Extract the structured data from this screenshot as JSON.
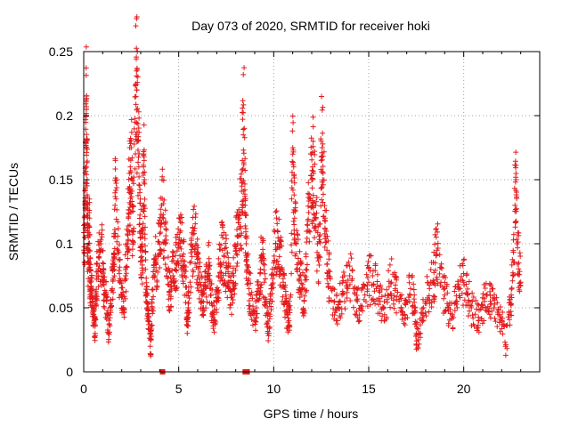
{
  "chart_data": {
    "type": "scatter",
    "title": "Day 073 of 2020, SRMTID for receiver hoki",
    "xlabel": "GPS time / hours",
    "ylabel": "SRMTID / TECUs",
    "xlim": [
      0,
      24
    ],
    "ylim": [
      0,
      0.25
    ],
    "grid": true,
    "marker": "plus",
    "colors": {
      "series": "#e41a1c",
      "axis": "#000000",
      "grid": "#a0a0a0"
    },
    "x_ticks": [
      {
        "value": 0,
        "label": "0"
      },
      {
        "value": 5,
        "label": "5"
      },
      {
        "value": 10,
        "label": "10"
      },
      {
        "value": 15,
        "label": "15"
      },
      {
        "value": 20,
        "label": "20"
      }
    ],
    "y_ticks": [
      {
        "value": 0,
        "label": "0"
      },
      {
        "value": 0.05,
        "label": "0.05"
      },
      {
        "value": 0.1,
        "label": "0.1"
      },
      {
        "value": 0.15,
        "label": "0.15"
      },
      {
        "value": 0.2,
        "label": "0.2"
      },
      {
        "value": 0.25,
        "label": "0.25"
      }
    ],
    "series": [
      {
        "name": "SRMTID",
        "points": [
          [
            0.0,
            0.095
          ],
          [
            0.05,
            0.105
          ],
          [
            0.08,
            0.13
          ],
          [
            0.1,
            0.16
          ],
          [
            0.12,
            0.2
          ],
          [
            0.14,
            0.205
          ],
          [
            0.15,
            0.175
          ],
          [
            0.18,
            0.15
          ],
          [
            0.2,
            0.11
          ],
          [
            0.22,
            0.095
          ],
          [
            0.25,
            0.085
          ],
          [
            0.3,
            0.12
          ],
          [
            0.32,
            0.08
          ],
          [
            0.35,
            0.07
          ],
          [
            0.4,
            0.065
          ],
          [
            0.45,
            0.055
          ],
          [
            0.5,
            0.045
          ],
          [
            0.55,
            0.04
          ],
          [
            0.6,
            0.03
          ],
          [
            0.65,
            0.06
          ],
          [
            0.7,
            0.075
          ],
          [
            0.8,
            0.09
          ],
          [
            0.9,
            0.1
          ],
          [
            1.0,
            0.085
          ],
          [
            1.05,
            0.07
          ],
          [
            1.1,
            0.06
          ],
          [
            1.2,
            0.055
          ],
          [
            1.3,
            0.03
          ],
          [
            1.4,
            0.05
          ],
          [
            1.5,
            0.065
          ],
          [
            1.55,
            0.08
          ],
          [
            1.6,
            0.09
          ],
          [
            1.65,
            0.13
          ],
          [
            1.7,
            0.135
          ],
          [
            1.8,
            0.095
          ],
          [
            1.9,
            0.07
          ],
          [
            2.0,
            0.06
          ],
          [
            2.1,
            0.05
          ],
          [
            2.2,
            0.075
          ],
          [
            2.3,
            0.1
          ],
          [
            2.35,
            0.12
          ],
          [
            2.4,
            0.14
          ],
          [
            2.45,
            0.16
          ],
          [
            2.5,
            0.175
          ],
          [
            2.55,
            0.13
          ],
          [
            2.6,
            0.11
          ],
          [
            2.7,
            0.195
          ],
          [
            2.75,
            0.215
          ],
          [
            2.8,
            0.22
          ],
          [
            2.85,
            0.18
          ],
          [
            2.9,
            0.16
          ],
          [
            2.95,
            0.14
          ],
          [
            3.0,
            0.105
          ],
          [
            3.05,
            0.09
          ],
          [
            3.1,
            0.095
          ],
          [
            3.15,
            0.16
          ],
          [
            3.2,
            0.15
          ],
          [
            3.25,
            0.08
          ],
          [
            3.3,
            0.06
          ],
          [
            3.35,
            0.05
          ],
          [
            3.4,
            0.04
          ],
          [
            3.5,
            0.02
          ],
          [
            3.55,
            0.025
          ],
          [
            3.6,
            0.05
          ],
          [
            3.7,
            0.075
          ],
          [
            3.8,
            0.085
          ],
          [
            3.9,
            0.09
          ],
          [
            4.0,
            0.095
          ],
          [
            4.1,
            0.13
          ],
          [
            4.2,
            0.12
          ],
          [
            4.3,
            0.1
          ],
          [
            4.4,
            0.08
          ],
          [
            4.5,
            0.06
          ],
          [
            4.6,
            0.07
          ],
          [
            4.7,
            0.075
          ],
          [
            4.8,
            0.08
          ],
          [
            4.9,
            0.085
          ],
          [
            5.0,
            0.1
          ],
          [
            5.1,
            0.11
          ],
          [
            5.2,
            0.09
          ],
          [
            5.3,
            0.08
          ],
          [
            5.4,
            0.06
          ],
          [
            5.45,
            0.03
          ],
          [
            5.5,
            0.05
          ],
          [
            5.6,
            0.07
          ],
          [
            5.7,
            0.09
          ],
          [
            5.8,
            0.11
          ],
          [
            5.9,
            0.1
          ],
          [
            6.0,
            0.085
          ],
          [
            6.1,
            0.07
          ],
          [
            6.2,
            0.06
          ],
          [
            6.3,
            0.05
          ],
          [
            6.4,
            0.065
          ],
          [
            6.5,
            0.075
          ],
          [
            6.6,
            0.08
          ],
          [
            6.7,
            0.06
          ],
          [
            6.8,
            0.045
          ],
          [
            6.9,
            0.04
          ],
          [
            7.0,
            0.055
          ],
          [
            7.1,
            0.075
          ],
          [
            7.2,
            0.085
          ],
          [
            7.3,
            0.095
          ],
          [
            7.4,
            0.09
          ],
          [
            7.5,
            0.085
          ],
          [
            7.6,
            0.07
          ],
          [
            7.7,
            0.065
          ],
          [
            7.8,
            0.06
          ],
          [
            7.9,
            0.075
          ],
          [
            8.0,
            0.095
          ],
          [
            8.1,
            0.1
          ],
          [
            8.2,
            0.12
          ],
          [
            8.3,
            0.125
          ],
          [
            8.35,
            0.165
          ],
          [
            8.4,
            0.185
          ],
          [
            8.45,
            0.19
          ],
          [
            8.5,
            0.13
          ],
          [
            8.55,
            0.1
          ],
          [
            8.6,
            0.08
          ],
          [
            8.7,
            0.065
          ],
          [
            8.8,
            0.06
          ],
          [
            9.0,
            0.04
          ],
          [
            9.1,
            0.05
          ],
          [
            9.2,
            0.065
          ],
          [
            9.3,
            0.08
          ],
          [
            9.4,
            0.09
          ],
          [
            9.5,
            0.07
          ],
          [
            9.6,
            0.055
          ],
          [
            9.7,
            0.035
          ],
          [
            9.8,
            0.045
          ],
          [
            9.9,
            0.065
          ],
          [
            10.0,
            0.085
          ],
          [
            10.1,
            0.1
          ],
          [
            10.2,
            0.11
          ],
          [
            10.3,
            0.09
          ],
          [
            10.4,
            0.08
          ],
          [
            10.5,
            0.07
          ],
          [
            10.6,
            0.055
          ],
          [
            10.7,
            0.045
          ],
          [
            10.8,
            0.04
          ],
          [
            10.9,
            0.06
          ],
          [
            11.0,
            0.17
          ],
          [
            11.05,
            0.16
          ],
          [
            11.1,
            0.12
          ],
          [
            11.2,
            0.1
          ],
          [
            11.3,
            0.085
          ],
          [
            11.4,
            0.075
          ],
          [
            11.5,
            0.065
          ],
          [
            11.6,
            0.055
          ],
          [
            11.7,
            0.08
          ],
          [
            11.8,
            0.11
          ],
          [
            11.9,
            0.135
          ],
          [
            12.0,
            0.15
          ],
          [
            12.05,
            0.16
          ],
          [
            12.1,
            0.155
          ],
          [
            12.2,
            0.13
          ],
          [
            12.3,
            0.1
          ],
          [
            12.4,
            0.09
          ],
          [
            12.5,
            0.165
          ],
          [
            12.55,
            0.175
          ],
          [
            12.6,
            0.155
          ],
          [
            12.7,
            0.12
          ],
          [
            12.8,
            0.095
          ],
          [
            12.9,
            0.075
          ],
          [
            13.0,
            0.065
          ],
          [
            13.2,
            0.055
          ],
          [
            13.4,
            0.05
          ],
          [
            13.6,
            0.06
          ],
          [
            13.8,
            0.07
          ],
          [
            14.0,
            0.075
          ],
          [
            14.2,
            0.065
          ],
          [
            14.4,
            0.055
          ],
          [
            14.6,
            0.05
          ],
          [
            14.8,
            0.06
          ],
          [
            15.0,
            0.07
          ],
          [
            15.2,
            0.075
          ],
          [
            15.4,
            0.065
          ],
          [
            15.6,
            0.055
          ],
          [
            15.8,
            0.05
          ],
          [
            16.0,
            0.06
          ],
          [
            16.2,
            0.07
          ],
          [
            16.4,
            0.065
          ],
          [
            16.6,
            0.055
          ],
          [
            16.8,
            0.045
          ],
          [
            17.0,
            0.055
          ],
          [
            17.2,
            0.065
          ],
          [
            17.4,
            0.06
          ],
          [
            17.5,
            0.03
          ],
          [
            17.6,
            0.025
          ],
          [
            17.8,
            0.04
          ],
          [
            18.0,
            0.055
          ],
          [
            18.2,
            0.065
          ],
          [
            18.4,
            0.07
          ],
          [
            18.5,
            0.085
          ],
          [
            18.6,
            0.095
          ],
          [
            18.8,
            0.07
          ],
          [
            19.0,
            0.06
          ],
          [
            19.2,
            0.05
          ],
          [
            19.4,
            0.045
          ],
          [
            19.6,
            0.055
          ],
          [
            19.8,
            0.065
          ],
          [
            20.0,
            0.07
          ],
          [
            20.2,
            0.06
          ],
          [
            20.4,
            0.05
          ],
          [
            20.6,
            0.045
          ],
          [
            20.8,
            0.04
          ],
          [
            21.0,
            0.05
          ],
          [
            21.2,
            0.06
          ],
          [
            21.4,
            0.055
          ],
          [
            21.6,
            0.05
          ],
          [
            21.8,
            0.045
          ],
          [
            22.0,
            0.04
          ],
          [
            22.2,
            0.02
          ],
          [
            22.4,
            0.045
          ],
          [
            22.5,
            0.06
          ],
          [
            22.6,
            0.075
          ],
          [
            22.7,
            0.13
          ],
          [
            22.75,
            0.15
          ],
          [
            22.8,
            0.1
          ],
          [
            22.9,
            0.085
          ],
          [
            23.0,
            0.07
          ]
        ]
      }
    ]
  }
}
